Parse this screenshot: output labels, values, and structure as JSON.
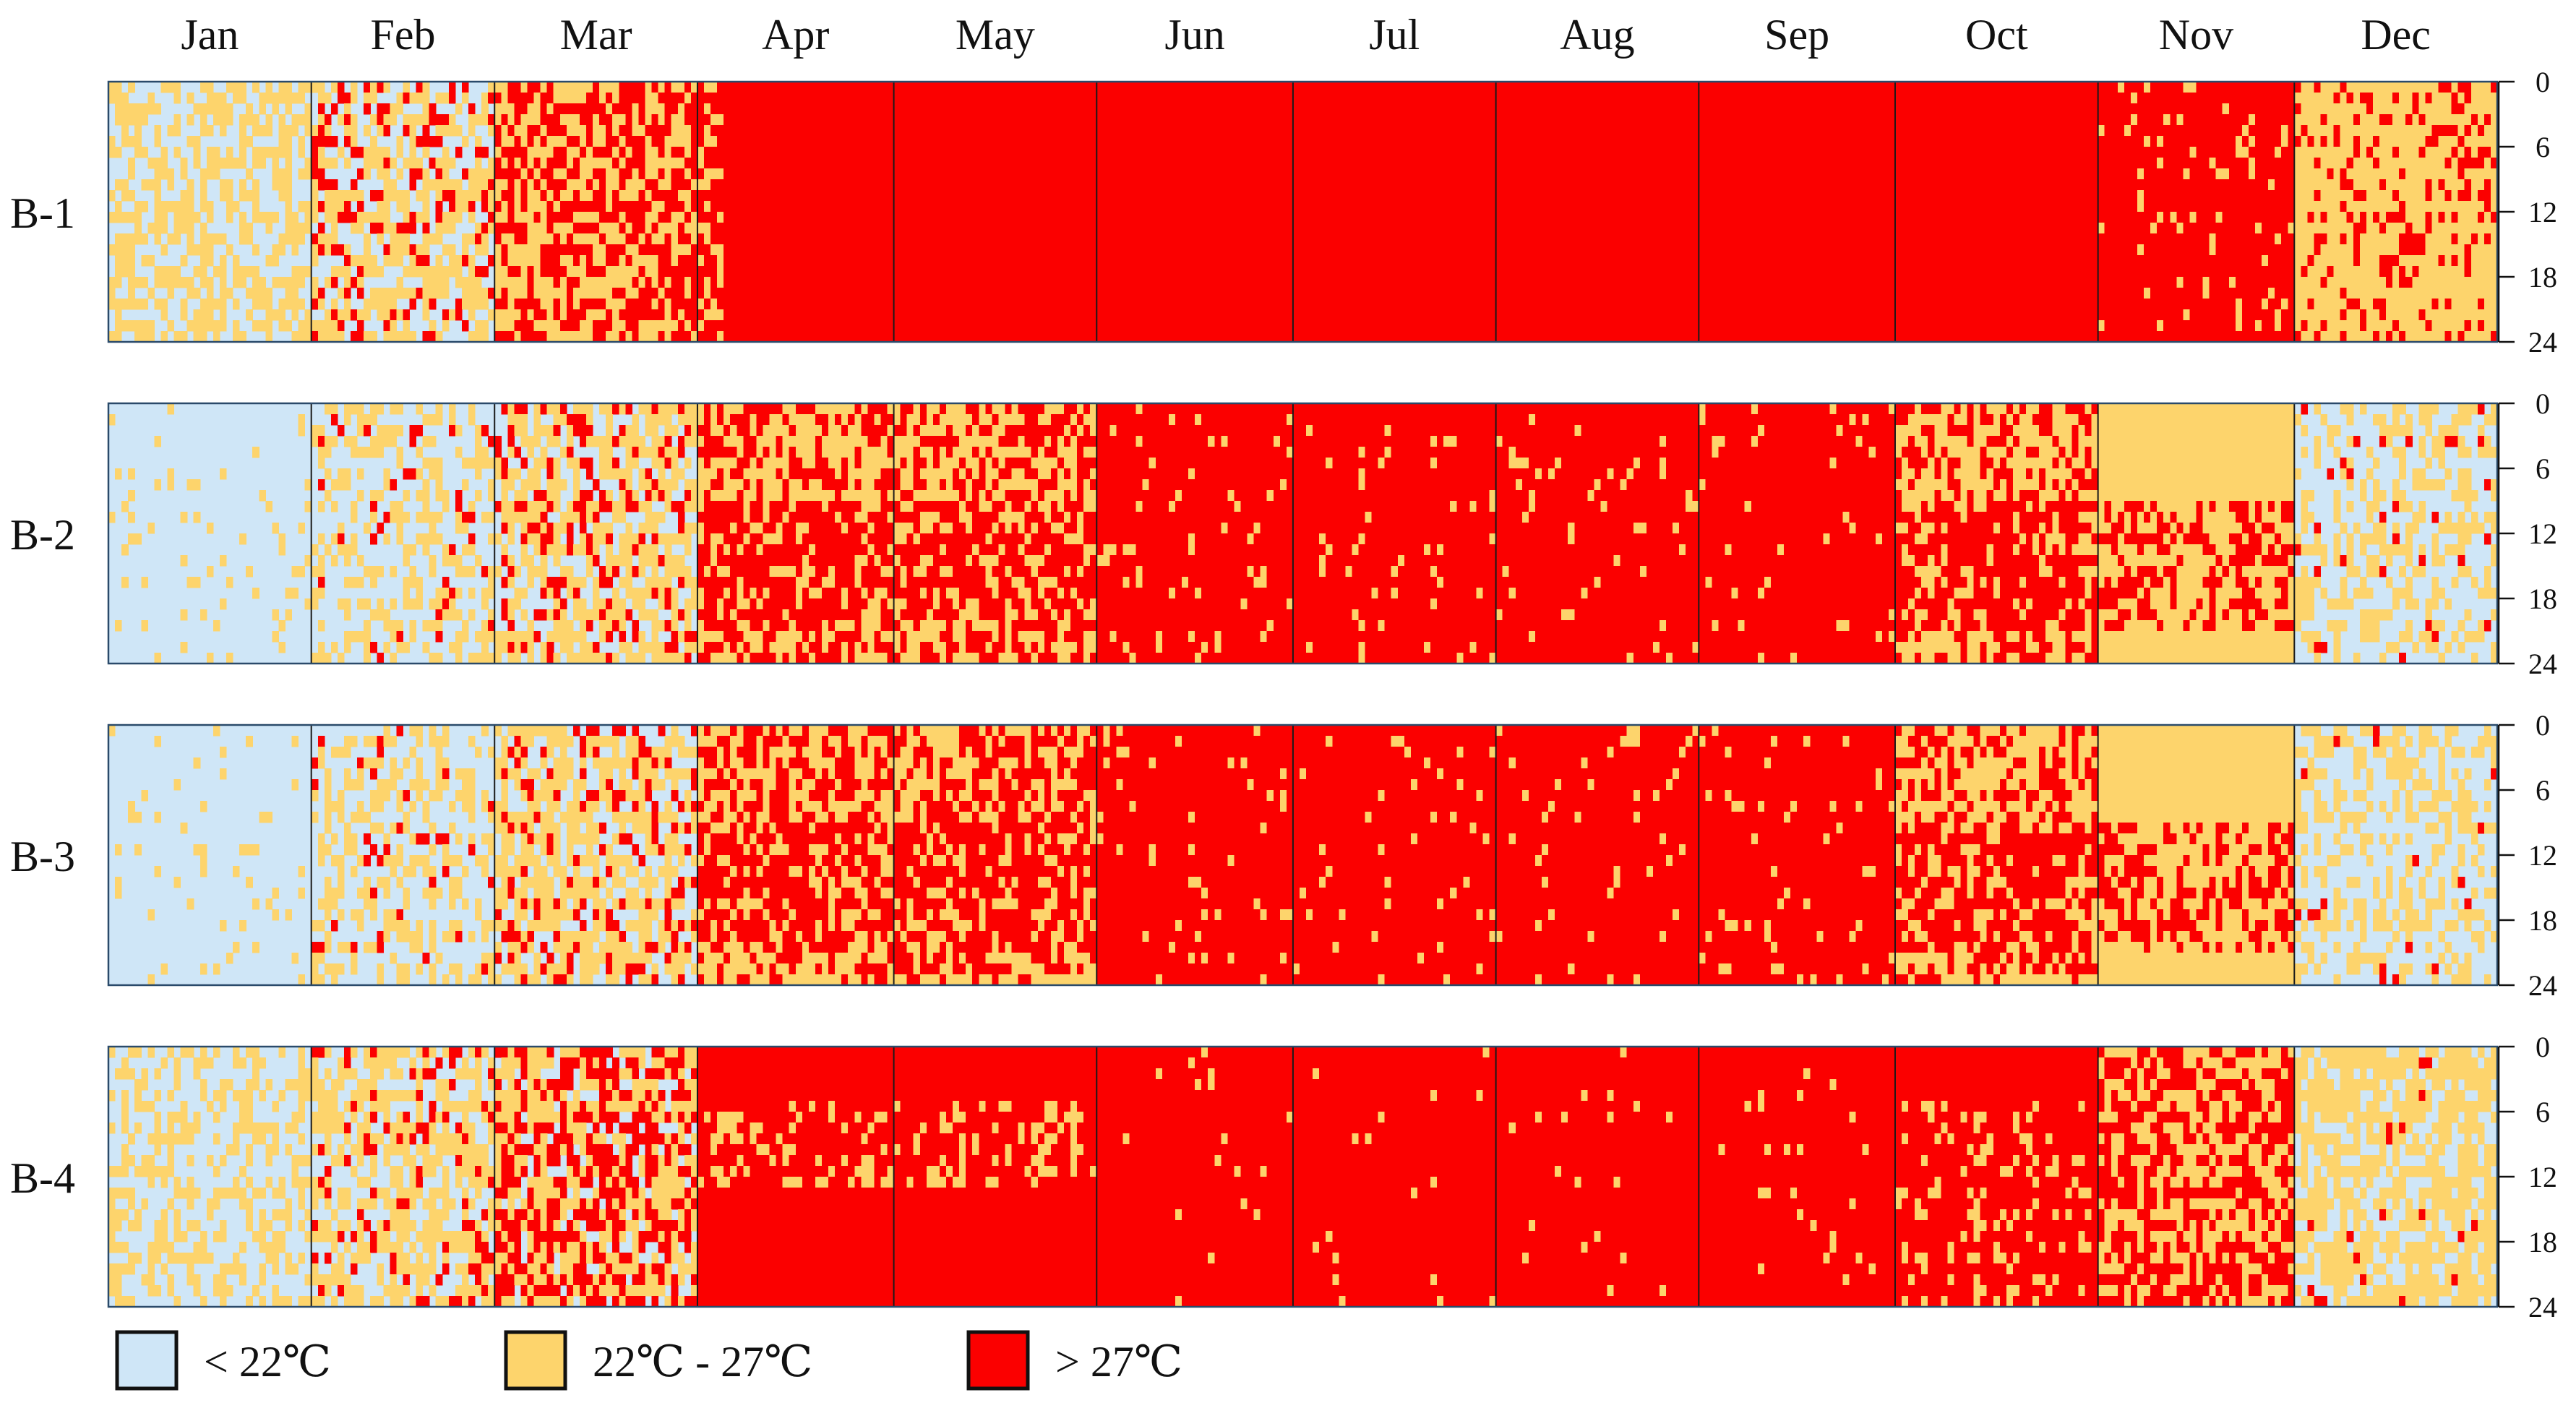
{
  "chart_data": {
    "type": "heatmap",
    "title": "",
    "xlabel": "",
    "ylabel": "",
    "months": [
      "Jan",
      "Feb",
      "Mar",
      "Apr",
      "May",
      "Jun",
      "Jul",
      "Aug",
      "Sep",
      "Oct",
      "Nov",
      "Dec"
    ],
    "hour_ticks": [
      "0",
      "6",
      "12",
      "18",
      "24"
    ],
    "hour_range": [
      0,
      24
    ],
    "legend": [
      {
        "label": "< 22℃",
        "color": "#cfe6f7"
      },
      {
        "label": "22℃ - 27℃",
        "color": "#fdd46c"
      },
      {
        "label": "> 27℃",
        "color": "#fb0000"
      }
    ],
    "legend_placement": "bottom",
    "grid": false,
    "panels": [
      {
        "name": "B-1",
        "monthly_pattern": [
          "mixed: blue/yellow",
          "mixed: yellow/blue/red",
          "mixed: red/yellow",
          "mostly red",
          "red",
          "red",
          "red",
          "red",
          "red",
          "red",
          "mostly red",
          "mixed: yellow/red"
        ]
      },
      {
        "name": "B-2",
        "monthly_pattern": [
          "mostly blue",
          "mixed: blue/yellow",
          "mixed: yellow/blue/red",
          "mixed: red/yellow",
          "mixed: red/yellow",
          "mostly red",
          "mostly red",
          "mostly red",
          "mostly red",
          "mixed: red/yellow",
          "mixed: yellow/red",
          "mixed: blue/yellow"
        ]
      },
      {
        "name": "B-3",
        "monthly_pattern": [
          "mostly blue",
          "mixed: blue/yellow",
          "mixed: yellow/blue/red",
          "mixed: red/yellow",
          "mixed: red/yellow",
          "mostly red",
          "mostly red",
          "mostly red",
          "mostly red",
          "mixed: red/yellow",
          "mixed: yellow/red",
          "mixed: blue/yellow"
        ]
      },
      {
        "name": "B-4",
        "monthly_pattern": [
          "mixed: blue/yellow",
          "mixed: yellow/blue/red",
          "mixed: red/yellow",
          "mostly red",
          "mostly red",
          "red",
          "red",
          "red",
          "red",
          "mostly red",
          "mixed: red/yellow",
          "mixed: yellow/blue"
        ]
      }
    ]
  }
}
